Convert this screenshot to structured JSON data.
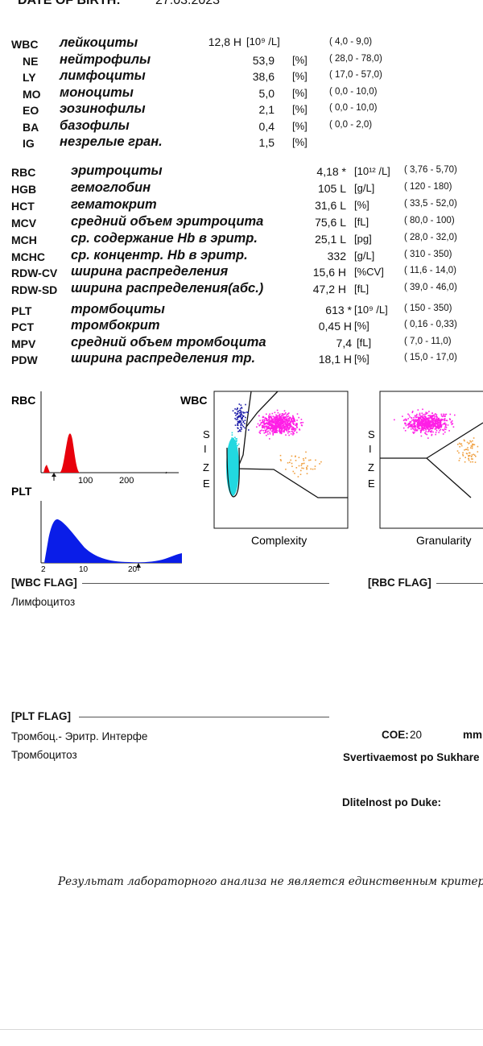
{
  "header": {
    "dob_label": "DATE OF BIRTH:",
    "dob_value": "27.03.2023"
  },
  "wbc_group": [
    {
      "code": "WBC",
      "name": "лейкоциты",
      "value": "12,8 H",
      "unit": "[10⁹ /L]",
      "ref": "(   4,0 -    9,0)"
    },
    {
      "code": "NE",
      "name": "нейтрофилы",
      "value": "53,9",
      "unit": "[%]",
      "ref": "( 28,0 -  78,0)"
    },
    {
      "code": "LY",
      "name": "лимфоциты",
      "value": "38,6",
      "unit": "[%]",
      "ref": "( 17,0 -  57,0)"
    },
    {
      "code": "MO",
      "name": "моноциты",
      "value": "5,0",
      "unit": "[%]",
      "ref": "(   0,0 -  10,0)"
    },
    {
      "code": "EO",
      "name": "эозинофилы",
      "value": "2,1",
      "unit": "[%]",
      "ref": "(   0,0 -  10,0)"
    },
    {
      "code": "BA",
      "name": "базофилы",
      "value": "0,4",
      "unit": "[%]",
      "ref": "(   0,0 -    2,0)"
    },
    {
      "code": "IG",
      "name": "незрелые гран.",
      "value": "1,5",
      "unit": "[%]",
      "ref": ""
    }
  ],
  "rbc_group": [
    {
      "code": "RBC",
      "name": "эритроциты",
      "value": "4,18 *",
      "unit": "[10¹² /L]",
      "ref": "( 3,76 -  5,70)"
    },
    {
      "code": "HGB",
      "name": "гемоглобин",
      "value": "105 L",
      "unit": "[g/L]",
      "ref": "(  120 -   180)"
    },
    {
      "code": "HCT",
      "name": "гематокрит",
      "value": "31,6 L",
      "unit": "[%]",
      "ref": "( 33,5 -  52,0)"
    },
    {
      "code": "MCV",
      "name": "средний объем эритроцита",
      "value": "75,6 L",
      "unit": "[fL]",
      "ref": "( 80,0 -   100)"
    },
    {
      "code": "MCH",
      "name": "ср. содержание Hb в эритр.",
      "value": "25,1 L",
      "unit": "[pg]",
      "ref": "( 28,0 -  32,0)"
    },
    {
      "code": "MCHC",
      "name": "ср. концентр. Hb в эритр.",
      "value": "332",
      "unit": "[g/L]",
      "ref": "(  310 -   350)"
    },
    {
      "code": "RDW-CV",
      "name": "ширина распределения",
      "value": "15,6 H",
      "unit": "[%CV]",
      "ref": "( 11,6 -  14,0)"
    },
    {
      "code": "RDW-SD",
      "name": "ширина распределения(абс.)",
      "value": "47,2 H",
      "unit": "[fL]",
      "ref": "( 39,0 -  46,0)"
    }
  ],
  "plt_group": [
    {
      "code": "PLT",
      "name": "тромбоциты",
      "value": "613 *",
      "unit": "[10⁹ /L]",
      "ref": "(  150 -   350)"
    },
    {
      "code": "PCT",
      "name": "тромбокрит",
      "value": "0,45 H",
      "unit": "[%]",
      "ref": "( 0,16 -  0,33)"
    },
    {
      "code": "MPV",
      "name": "средний объем тромбоцита",
      "value": "7,4",
      "unit": "[fL]",
      "ref": "(   7,0 -  11,0)"
    },
    {
      "code": "PDW",
      "name": "ширина распределения тр.",
      "value": "18,1 H",
      "unit": "[%]",
      "ref": "( 15,0 -  17,0)"
    }
  ],
  "graphs": {
    "rbc_label": "RBC",
    "rbc_ticks": [
      "100",
      "200"
    ],
    "plt_label": "PLT",
    "plt_ticks": [
      "2",
      "10",
      "20"
    ],
    "wbc_label": "WBC",
    "size_letters": [
      "S",
      "I",
      "Z",
      "E"
    ],
    "complexity_label": "Complexity",
    "granularity_label": "Granularity",
    "colors": {
      "rbc": "#e8000c",
      "plt": "#0a1de8",
      "magenta": "#ff1ee6",
      "cyan": "#22d8e0",
      "blue": "#1a1aa8",
      "orange": "#f0a040"
    }
  },
  "flags": {
    "wbc_title": "[WBC FLAG]",
    "wbc_text": "Лимфоцитоз",
    "rbc_title": "[RBC FLAG]",
    "plt_title": "[PLT FLAG]",
    "plt_text1": "Тромбоц.- Эритр. Интерфе",
    "plt_text2": "Тромбоцитоз"
  },
  "extra": {
    "coe_label": "COE:",
    "coe_value": "20",
    "coe_unit": "mm",
    "sukhar_label": "Svertivaemost po Sukhare",
    "duke_label": "Dlitelnost po Duke:"
  },
  "footer": "Результат лабораторного анализа не является единственным критерие"
}
